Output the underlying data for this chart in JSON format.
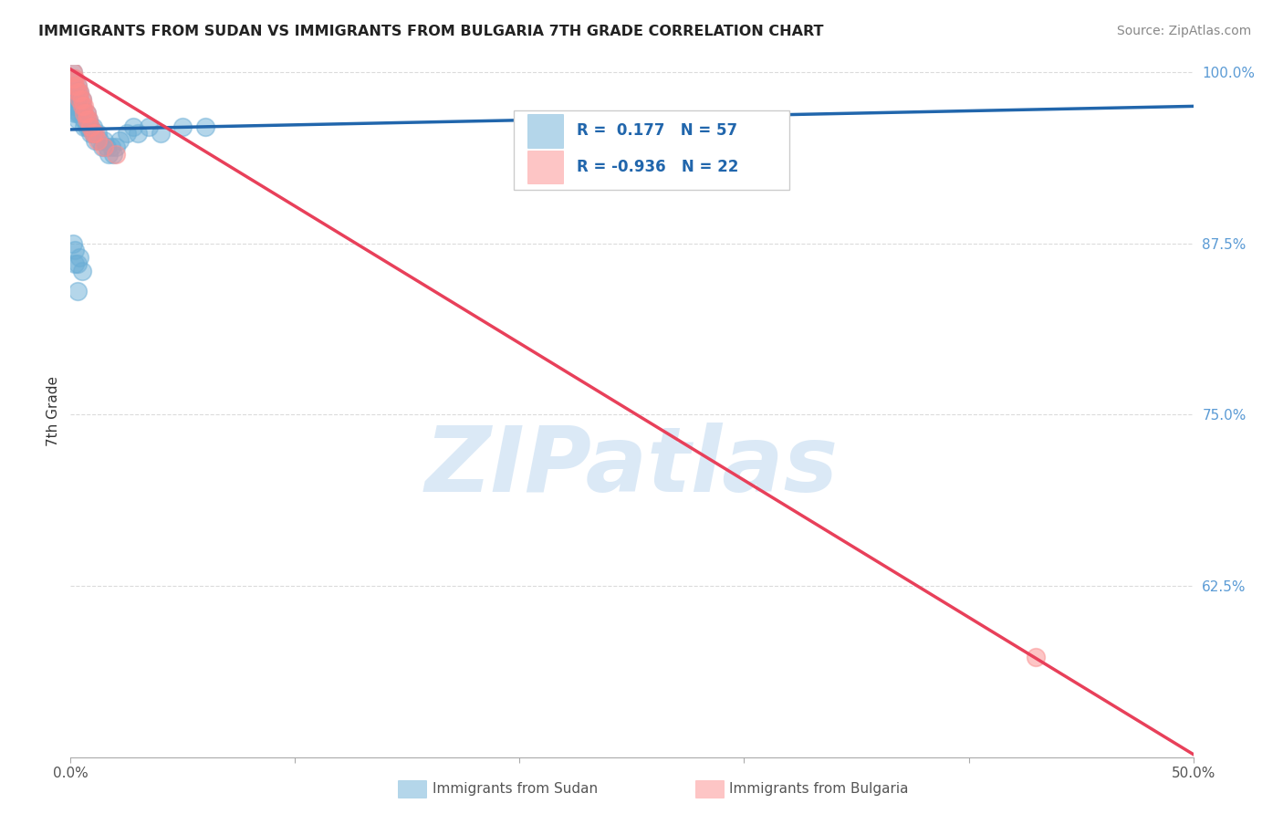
{
  "title": "IMMIGRANTS FROM SUDAN VS IMMIGRANTS FROM BULGARIA 7TH GRADE CORRELATION CHART",
  "source": "Source: ZipAtlas.com",
  "ylabel": "7th Grade",
  "legend_label_1": "Immigrants from Sudan",
  "legend_label_2": "Immigrants from Bulgaria",
  "R1": 0.177,
  "N1": 57,
  "R2": -0.936,
  "N2": 22,
  "color_sudan": "#6baed6",
  "color_bulgaria": "#fc8d8d",
  "color_sudan_line": "#2166ac",
  "color_bulgaria_line": "#e8405a",
  "xmin": 0.0,
  "xmax": 0.5,
  "ymin": 0.5,
  "ymax": 1.005,
  "yticks": [
    0.625,
    0.75,
    0.875,
    1.0
  ],
  "ytick_labels": [
    "62.5%",
    "75.0%",
    "87.5%",
    "100.0%"
  ],
  "xtick_labels": [
    "0.0%",
    "",
    "",
    "",
    "",
    "50.0%"
  ],
  "watermark": "ZIPatlas",
  "sudan_x": [
    0.001,
    0.001,
    0.002,
    0.002,
    0.002,
    0.002,
    0.002,
    0.003,
    0.003,
    0.003,
    0.003,
    0.003,
    0.003,
    0.004,
    0.004,
    0.004,
    0.004,
    0.005,
    0.005,
    0.005,
    0.006,
    0.006,
    0.006,
    0.007,
    0.007,
    0.007,
    0.008,
    0.008,
    0.009,
    0.009,
    0.01,
    0.01,
    0.011,
    0.012,
    0.013,
    0.014,
    0.015,
    0.016,
    0.017,
    0.018,
    0.019,
    0.02,
    0.022,
    0.025,
    0.028,
    0.03,
    0.035,
    0.04,
    0.05,
    0.06,
    0.001,
    0.002,
    0.003,
    0.004,
    0.002,
    0.003,
    0.005
  ],
  "sudan_y": [
    1.0,
    0.995,
    0.99,
    0.985,
    0.98,
    0.975,
    0.97,
    0.99,
    0.985,
    0.98,
    0.975,
    0.97,
    0.965,
    0.985,
    0.98,
    0.975,
    0.97,
    0.98,
    0.975,
    0.97,
    0.97,
    0.965,
    0.96,
    0.97,
    0.965,
    0.96,
    0.965,
    0.96,
    0.96,
    0.955,
    0.96,
    0.955,
    0.95,
    0.955,
    0.95,
    0.945,
    0.95,
    0.945,
    0.94,
    0.945,
    0.94,
    0.945,
    0.95,
    0.955,
    0.96,
    0.955,
    0.96,
    0.955,
    0.96,
    0.96,
    0.875,
    0.87,
    0.86,
    0.865,
    0.86,
    0.84,
    0.855
  ],
  "bulgaria_x": [
    0.001,
    0.001,
    0.002,
    0.002,
    0.003,
    0.003,
    0.004,
    0.004,
    0.005,
    0.005,
    0.006,
    0.006,
    0.007,
    0.007,
    0.008,
    0.009,
    0.01,
    0.011,
    0.012,
    0.015,
    0.02,
    0.43
  ],
  "bulgaria_y": [
    1.0,
    0.995,
    0.995,
    0.99,
    0.99,
    0.985,
    0.985,
    0.98,
    0.98,
    0.975,
    0.975,
    0.97,
    0.97,
    0.965,
    0.965,
    0.96,
    0.955,
    0.955,
    0.95,
    0.945,
    0.94,
    0.573
  ],
  "sudan_line_x": [
    0.0,
    0.5
  ],
  "sudan_line_y": [
    0.958,
    0.975
  ],
  "bulgaria_line_x": [
    0.0,
    0.5
  ],
  "bulgaria_line_y": [
    1.002,
    0.502
  ]
}
